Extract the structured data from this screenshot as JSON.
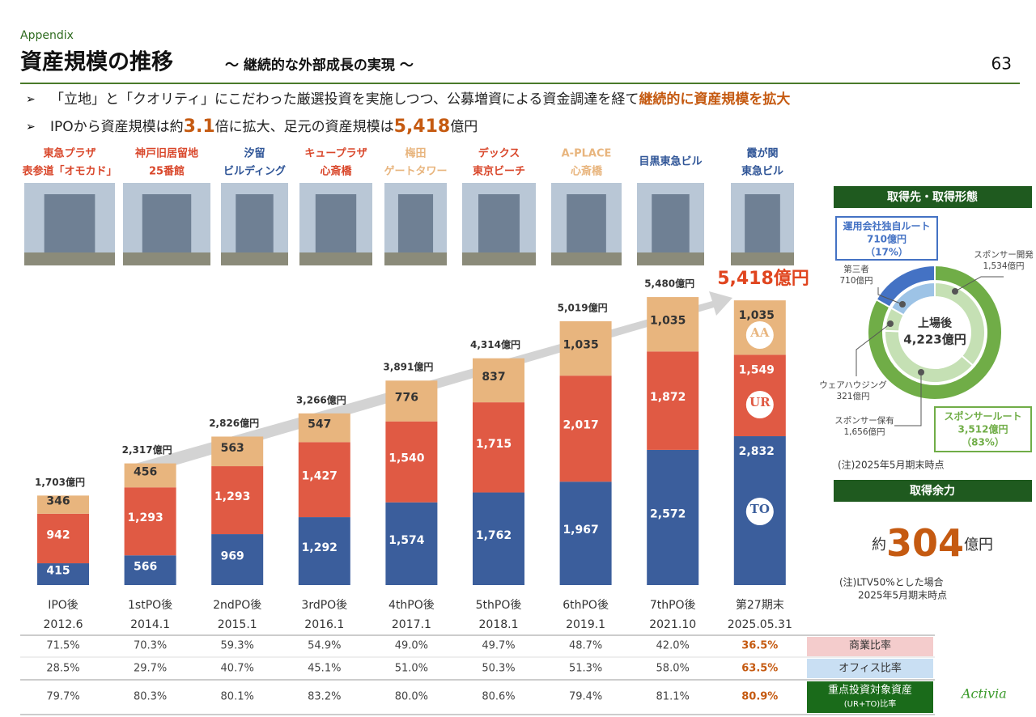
{
  "header": {
    "section": "Appendix",
    "title": "資産規模の推移",
    "subtitle": "～ 継続的な外部成長の実現 ～",
    "page": "63"
  },
  "bullets": [
    [
      {
        "text": "「立地」と「クオリティ」にこだわった厳選投資を実施しつつ、公募増資による資金調達を経て"
      },
      {
        "text": "継続的に資産規模を拡大",
        "emphasis": true
      }
    ],
    [
      {
        "text": "IPOから資産規模は約"
      },
      {
        "text": "3.1",
        "emphasis": true,
        "large": true
      },
      {
        "text": "倍に拡大、足元の資産規模は"
      },
      {
        "text": "5,418",
        "emphasis": true,
        "large": true
      },
      {
        "text": "億円"
      }
    ]
  ],
  "properties": [
    {
      "name": [
        "東急プラザ",
        "表参道「オモカド」"
      ],
      "color": "#d9472b"
    },
    {
      "name": [
        "神戸旧居留地",
        "25番館"
      ],
      "color": "#d9472b"
    },
    {
      "name": [
        "汐留",
        "ビルディング"
      ],
      "color": "#2f5597"
    },
    {
      "name": [
        "キュープラザ",
        "心斎橋"
      ],
      "color": "#d9472b"
    },
    {
      "name": [
        "梅田",
        "ゲートタワー"
      ],
      "color": "#e8b57e"
    },
    {
      "name": [
        "デックス",
        "東京ビーチ"
      ],
      "color": "#d9472b"
    },
    {
      "name": [
        "A-PLACE",
        "心斎橋"
      ],
      "color": "#e8b57e"
    },
    {
      "name": [
        "目黒東急ビル"
      ],
      "color": "#2f5597"
    },
    {
      "name": [
        "霞が関",
        "東急ビル"
      ],
      "color": "#2f5597"
    }
  ],
  "chart_data": [
    {
      "type": "bar",
      "stacked": true,
      "categories": [
        "IPO後",
        "1stPO後",
        "2ndPO後",
        "3rdPO後",
        "4thPO後",
        "5thPO後",
        "6thPO後",
        "7thPO後",
        "第27期末"
      ],
      "category_dates": [
        "2012.6",
        "2014.1",
        "2015.1",
        "2016.1",
        "2017.1",
        "2018.1",
        "2019.1",
        "2021.10",
        "2025.05.31"
      ],
      "series": [
        {
          "color": "#3b5e9c",
          "values": [
            415,
            566,
            969,
            1292,
            1574,
            1762,
            1967,
            2572,
            2832
          ],
          "value_labels": [
            "415",
            "566",
            "969",
            "1,292",
            "1,574",
            "1,762",
            "1,967",
            "2,572",
            "2,832"
          ]
        },
        {
          "color": "#e05a44",
          "values": [
            942,
            1293,
            1293,
            1427,
            1540,
            1715,
            2017,
            1872,
            1549
          ],
          "value_labels": [
            "942",
            "1,293",
            "1,293",
            "1,427",
            "1,540",
            "1,715",
            "2,017",
            "1,872",
            "1,549"
          ]
        },
        {
          "color": "#e8b57e",
          "values": [
            346,
            456,
            563,
            547,
            776,
            837,
            1035,
            1035,
            1035
          ],
          "value_labels": [
            "346",
            "456",
            "563",
            "547",
            "776",
            "837",
            "1,035",
            "1,035",
            "1,035"
          ]
        }
      ],
      "totals": [
        1703,
        2317,
        2826,
        3266,
        3891,
        4314,
        5019,
        5480,
        5418
      ],
      "total_labels": [
        "1,703億円",
        "2,317億円",
        "2,826億円",
        "3,266億円",
        "3,891億円",
        "4,314億円",
        "5,019億円",
        "5,480億円",
        "5,418億円"
      ],
      "brand_icons": [
        "AA",
        "UR",
        "TO"
      ]
    },
    {
      "type": "donut",
      "title": "取得先・取得形態",
      "center_label": [
        "上場後",
        "4,223億円"
      ],
      "rings": [
        {
          "labels": [
            "スポンサールート",
            "運用会社独自ルート"
          ],
          "values": [
            3512,
            710
          ],
          "value_labels": [
            "3,512億円",
            "710億円"
          ],
          "percents": [
            83,
            17
          ],
          "percent_labels": [
            "（83%）",
            "（17%）"
          ],
          "colors": [
            "#70ad47",
            "#4472c4"
          ]
        },
        {
          "labels": [
            "スポンサー開発",
            "スポンサー保有",
            "ウェアハウジング",
            "第三者"
          ],
          "values": [
            1534,
            1656,
            321,
            710
          ],
          "value_labels": [
            "1,534億円",
            "1,656億円",
            "321億円",
            "710億円"
          ],
          "colors": [
            "#c5e0b4",
            "#c5e0b4",
            "#c5e0b4",
            "#9dc3e6"
          ]
        }
      ],
      "note": "(注)2025年5月期末時点"
    }
  ],
  "capacity": {
    "title": "取得余力",
    "prefix": "約",
    "value": "304",
    "unit": "億円",
    "note": [
      "(注)LTV50%とした場合",
      "2025年5月期末時点"
    ]
  },
  "table": {
    "rows": [
      {
        "label": [
          "商業比率"
        ],
        "cells": [
          "71.5%",
          "70.3%",
          "59.3%",
          "54.9%",
          "49.0%",
          "49.7%",
          "48.7%",
          "42.0%",
          "36.5%"
        ]
      },
      {
        "label": [
          "オフィス比率"
        ],
        "cells": [
          "28.5%",
          "29.7%",
          "40.7%",
          "45.1%",
          "51.0%",
          "50.3%",
          "51.3%",
          "58.0%",
          "63.5%"
        ]
      },
      {
        "label": [
          "重点投資対象資産",
          "(UR+TO)比率"
        ],
        "cells": [
          "79.7%",
          "80.3%",
          "80.1%",
          "83.2%",
          "80.0%",
          "80.6%",
          "79.4%",
          "81.1%",
          "80.9%"
        ]
      }
    ]
  },
  "logo": "Activia"
}
